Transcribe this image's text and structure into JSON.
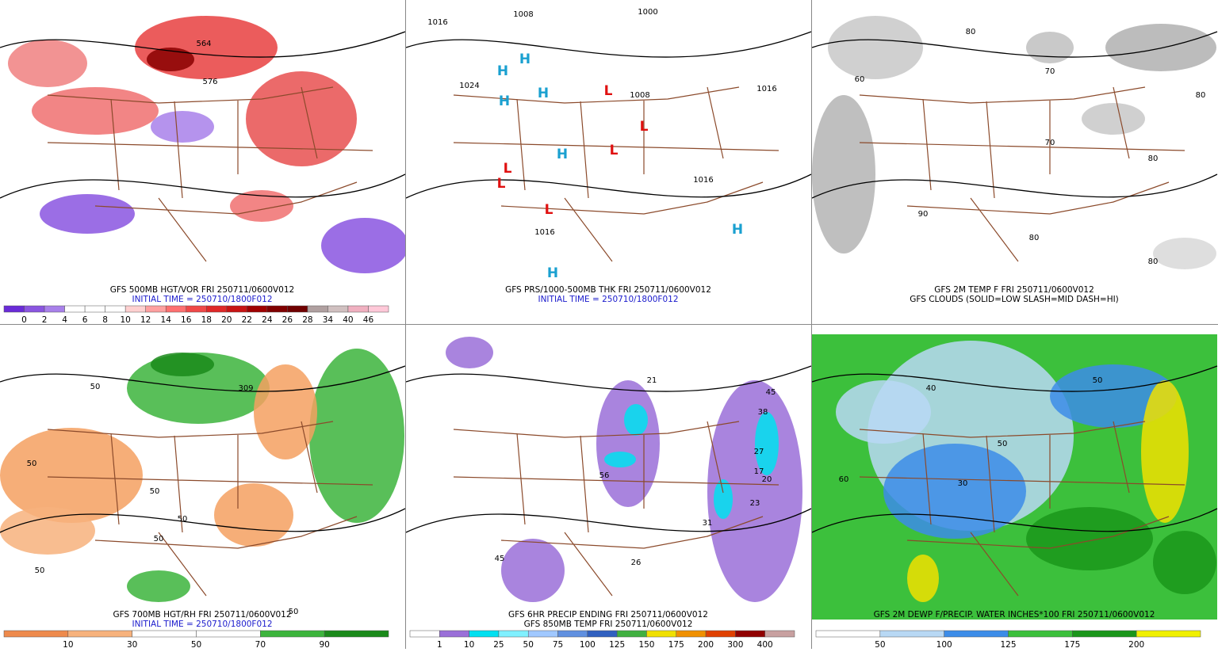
{
  "panels": [
    {
      "captions": [
        "GFS 500MB HGT/VOR FRI 250711/0600V012",
        "INITIAL TIME = 250710/1800F012"
      ],
      "colorbar": {
        "labels": [
          "0",
          "2",
          "4",
          "6",
          "8",
          "10",
          "12",
          "14",
          "16",
          "18",
          "20",
          "22",
          "24",
          "26",
          "28",
          "34",
          "40",
          "46"
        ],
        "colors": [
          "#6a2bd8",
          "#8a55e0",
          "#a880ea",
          "#ffffff",
          "#ffffff",
          "#ffffff",
          "#ffd0d0",
          "#ffa0a0",
          "#ff7070",
          "#f04848",
          "#e02828",
          "#c81414",
          "#a00000",
          "#800000",
          "#700000",
          "#b0a0a0",
          "#d0c0c0",
          "#f0b0c0",
          "#ffc8d8"
        ]
      },
      "map_labels": [
        "564",
        "576"
      ]
    },
    {
      "captions": [
        "GFS PRS/1000-500MB THK FRI 250711/0600V012",
        "INITIAL TIME = 250710/1800F012"
      ],
      "map_labels": [
        "1016",
        "1008",
        "1000",
        "1024",
        "H",
        "H",
        "H",
        "H",
        "H",
        "L",
        "L",
        "L",
        "L",
        "L",
        "L",
        "1008",
        "1016",
        "1016",
        "1016",
        "H",
        "H"
      ]
    },
    {
      "captions": [
        "GFS 2M TEMP F FRI 250711/0600V012",
        "GFS CLOUDS (SOLID=LOW SLASH=MID DASH=HI)"
      ],
      "map_labels": [
        "80",
        "70",
        "60",
        "80",
        "90",
        "80",
        "70",
        "80",
        "80"
      ]
    },
    {
      "captions": [
        "GFS 700MB HGT/RH FRI 250711/0600V012",
        "INITIAL TIME = 250710/1800F012"
      ],
      "colorbar": {
        "labels": [
          "10",
          "30",
          "50",
          "70",
          "90"
        ],
        "colors": [
          "#ee8a4c",
          "#f7b27c",
          "#ffffff",
          "#ffffff",
          "#3cb43c",
          "#1a8a1a"
        ]
      },
      "map_labels": [
        "50",
        "50",
        "309",
        "50",
        "50",
        "50",
        "50",
        "50"
      ]
    },
    {
      "captions": [
        "GFS 6HR PRECIP ENDING FRI 250711/0600V012",
        "GFS 850MB TEMP FRI 250711/0600V012"
      ],
      "colorbar": {
        "labels": [
          "1",
          "10",
          "25",
          "50",
          "75",
          "100",
          "125",
          "150",
          "175",
          "200",
          "300",
          "400"
        ],
        "colors": [
          "#ffffff",
          "#9a6fd8",
          "#00e0f0",
          "#80f0ff",
          "#a0c8ff",
          "#6090e0",
          "#3060c0",
          "#40b040",
          "#f0e000",
          "#f09000",
          "#e04000",
          "#900000",
          "#c8a0a0"
        ]
      },
      "map_labels": [
        "45",
        "38",
        "27",
        "17",
        "20",
        "23",
        "31",
        "26",
        "21",
        "56",
        "45"
      ]
    },
    {
      "captions": [
        "GFS 2M DEWP F/PRECIP. WATER INCHES*100 FRI 250711/0600V012"
      ],
      "colorbar": {
        "labels": [
          "50",
          "100",
          "125",
          "175",
          "200"
        ],
        "colors": [
          "#ffffff",
          "#b8d8f4",
          "#3c8ce8",
          "#3cc03c",
          "#1a961a",
          "#f0f000"
        ]
      },
      "map_labels": [
        "30",
        "50",
        "40",
        "60",
        "50"
      ]
    }
  ]
}
